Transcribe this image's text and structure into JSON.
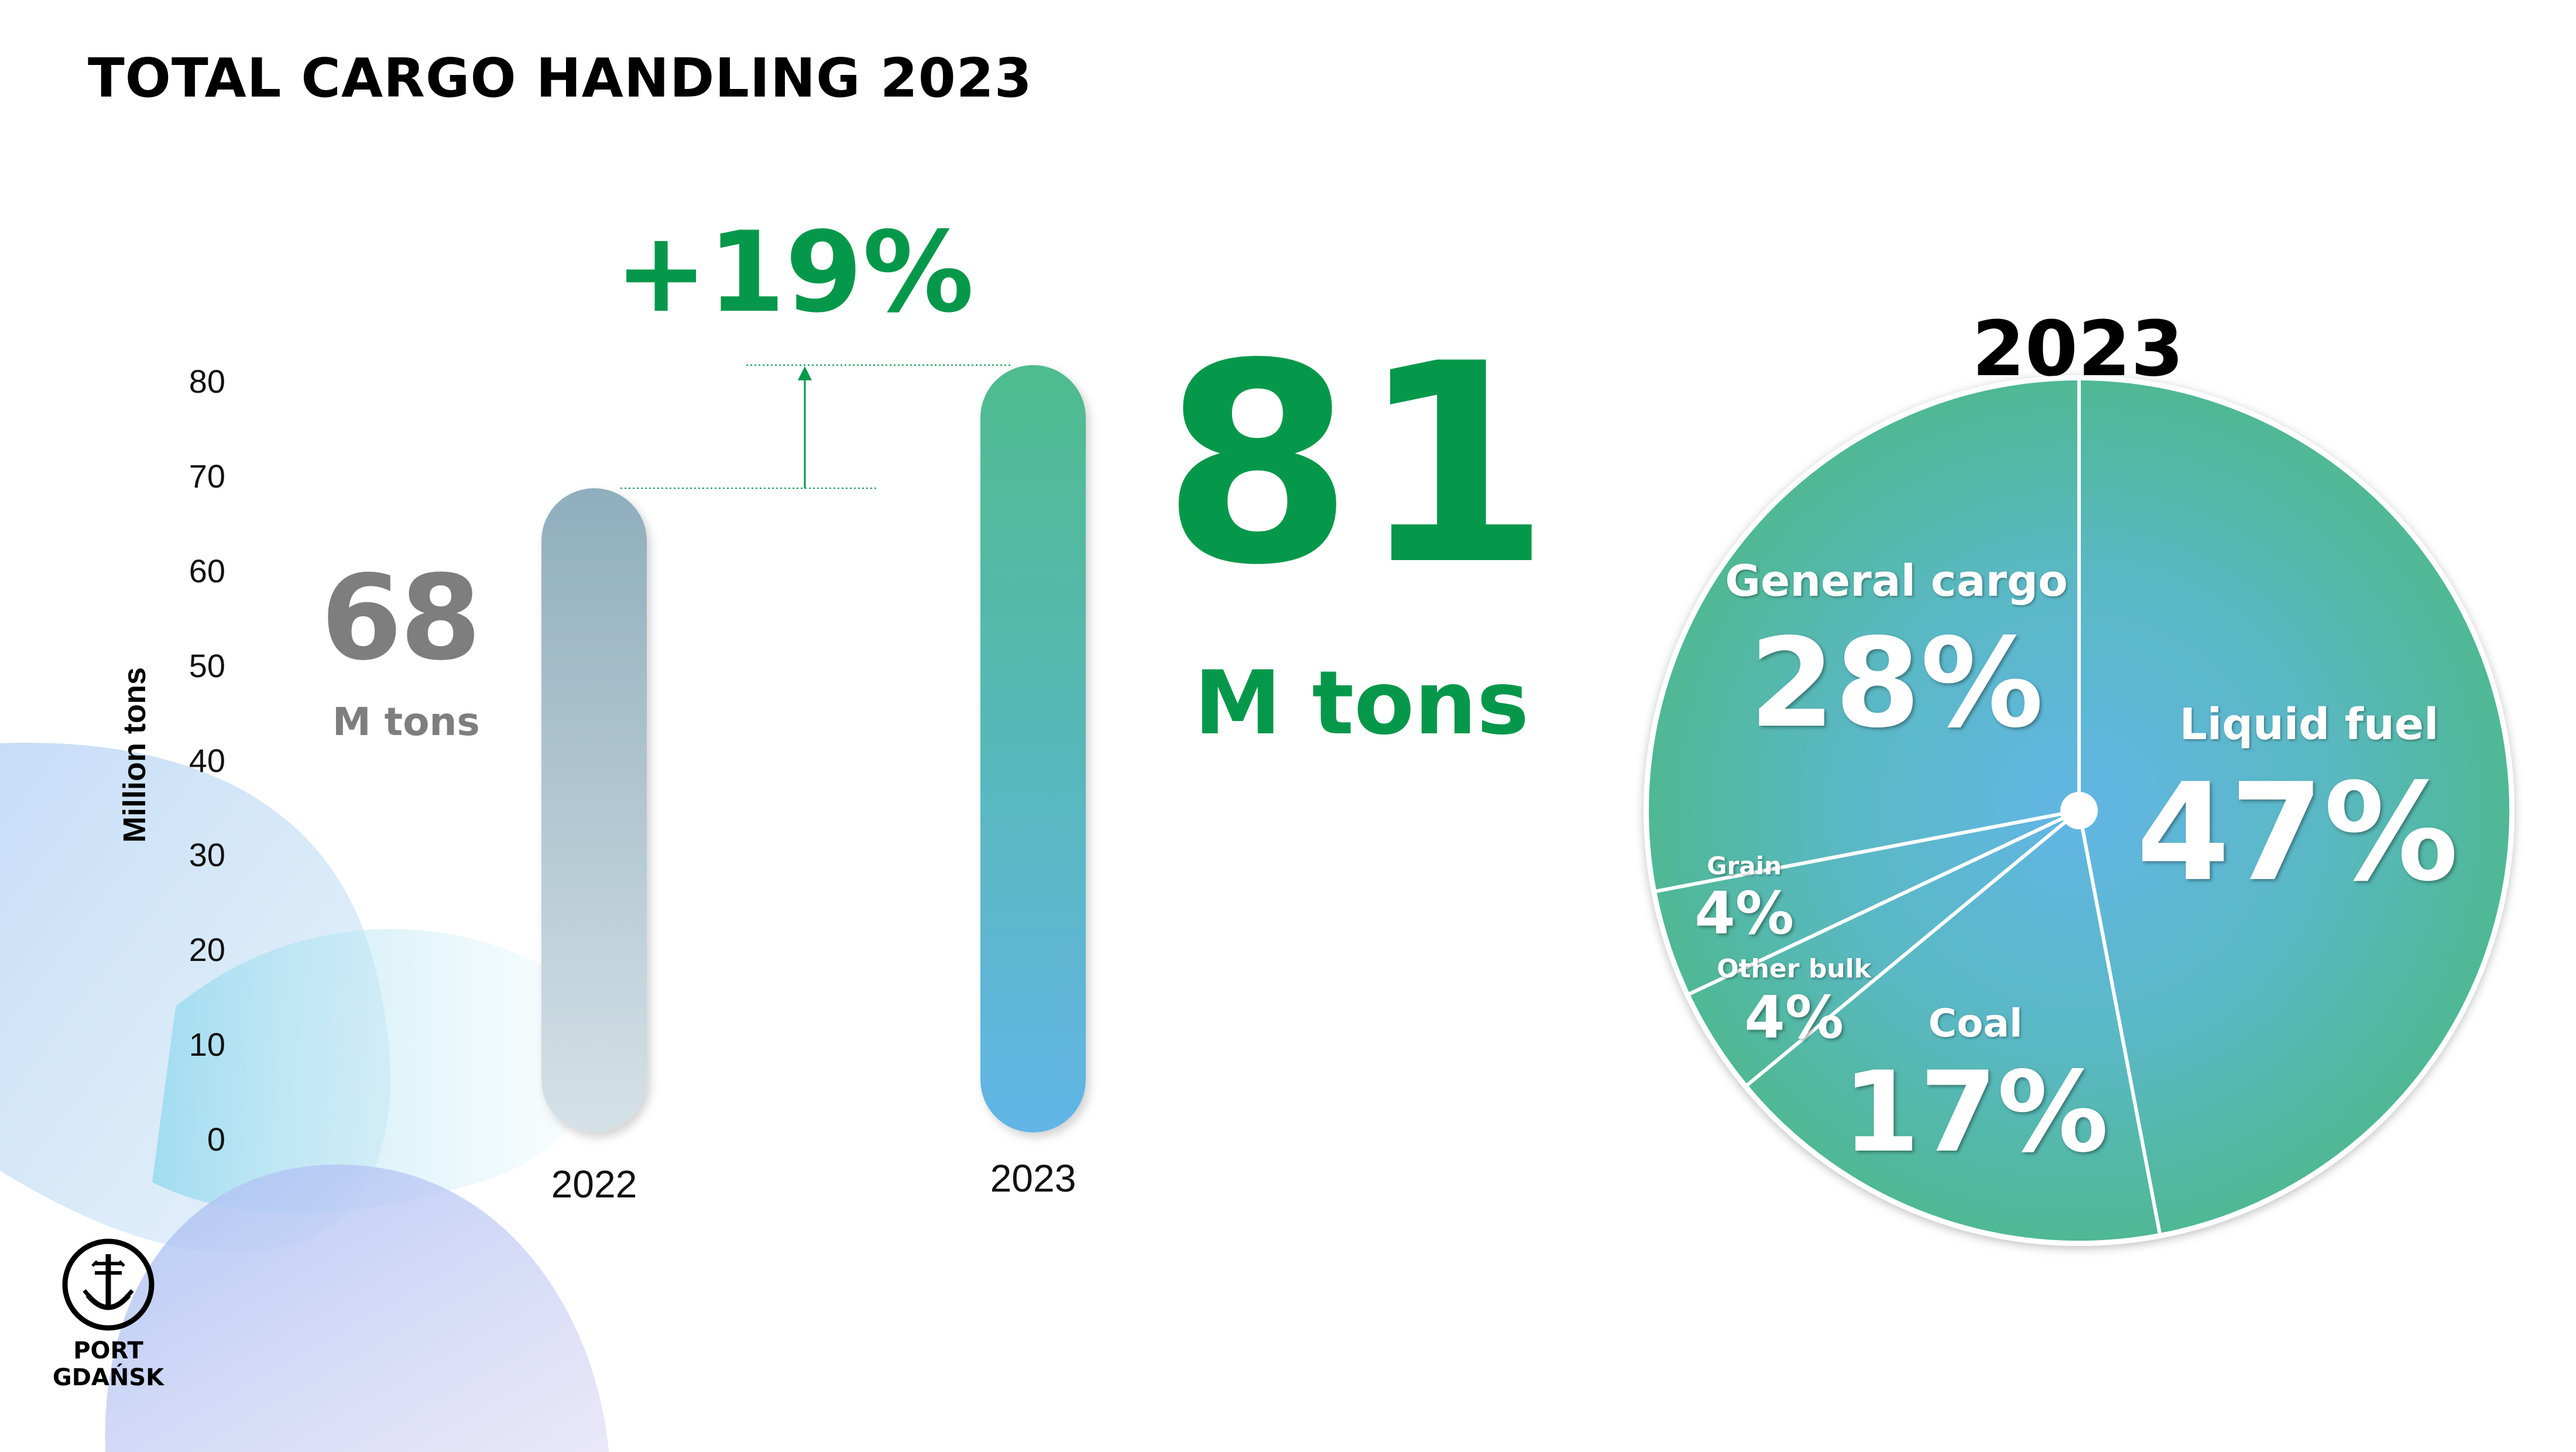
{
  "title": "TOTAL CARGO HANDLING 2023",
  "bar_section": {
    "change_label": "+19%",
    "value_2022": "68",
    "unit_2022": "M tons",
    "value_2023": "81",
    "unit_2023": "M tons"
  },
  "pie_section": {
    "title": "2023"
  },
  "logo": {
    "text": "PORT\nGDAŃSK",
    "icon": "port-anchor-crown-icon"
  },
  "colors": {
    "green_accent": "#06984a",
    "gray_text": "#7e7e7e",
    "teal": "#4fb893",
    "blue": "#62b6e4"
  },
  "chart_data": [
    {
      "type": "bar",
      "categories": [
        "2022",
        "2023"
      ],
      "values": [
        68,
        81
      ],
      "ylabel": "Million tons",
      "ylim": [
        0,
        80
      ],
      "yticks": [
        0,
        10,
        20,
        30,
        40,
        50,
        60,
        70,
        80
      ],
      "grid": false
    },
    {
      "type": "pie",
      "title": "2023",
      "slices": [
        {
          "label": "Liquid fuel",
          "value": 47,
          "display": "47%"
        },
        {
          "label": "Coal",
          "value": 17,
          "display": "17%"
        },
        {
          "label": "Other bulk",
          "value": 4,
          "display": "4%"
        },
        {
          "label": "Grain",
          "value": 4,
          "display": "4%"
        },
        {
          "label": "General cargo",
          "value": 28,
          "display": "28%"
        }
      ]
    }
  ]
}
